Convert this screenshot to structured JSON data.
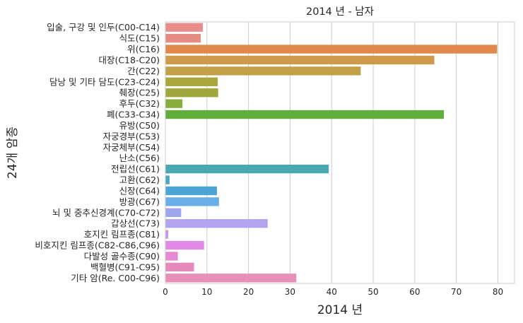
{
  "chart_data": {
    "type": "bar",
    "orientation": "horizontal",
    "title": "2014 년 - 남자",
    "xlabel": "2014 년",
    "ylabel": "24개 암종",
    "xlim": [
      0,
      84
    ],
    "xticks": [
      0,
      10,
      20,
      30,
      40,
      50,
      60,
      70,
      80
    ],
    "grid": "vertical",
    "categories": [
      "입술, 구강 및 인두(C00-C14)",
      "식도(C15)",
      "위(C16)",
      "대장(C18-C20)",
      "간(C22)",
      "담낭 및 기타 담도(C23-C24)",
      "췌장(C25)",
      "후두(C32)",
      "폐(C33-C34)",
      "유방(C50)",
      "자궁경부(C53)",
      "자궁체부(C54)",
      "난소(C56)",
      "전립선(C61)",
      "고환(C62)",
      "신장(C64)",
      "방광(C67)",
      "뇌 및 중추신경계(C70-C72)",
      "갑상선(C73)",
      "호지킨 림프종(C81)",
      "비호지킨 림프종(C82-C86,C96)",
      "다발성 골수종(C90)",
      "백혈병(C91-C95)",
      "기타 암(Re. C00-C96)"
    ],
    "values": [
      9.0,
      8.5,
      79.8,
      64.7,
      47.0,
      12.6,
      12.7,
      4.1,
      67.0,
      0.0,
      0.0,
      0.0,
      0.0,
      39.3,
      1.0,
      12.4,
      12.9,
      3.8,
      24.6,
      0.7,
      9.3,
      3.0,
      6.9,
      31.5
    ],
    "colors": [
      "#e88c8c",
      "#e48c82",
      "#e0894a",
      "#cf9a4a",
      "#c2a048",
      "#a9a83c",
      "#a0a83c",
      "#88ad3c",
      "#5fad3c",
      "#52b05a",
      "#4db07a",
      "#4db08e",
      "#4aaf9f",
      "#48aab0",
      "#4aa7c0",
      "#4aa5d4",
      "#6aaee8",
      "#9ea6ee",
      "#b3a2ee",
      "#c898ea",
      "#e08ae6",
      "#e48ad4",
      "#e68abc",
      "#e890b8"
    ]
  }
}
